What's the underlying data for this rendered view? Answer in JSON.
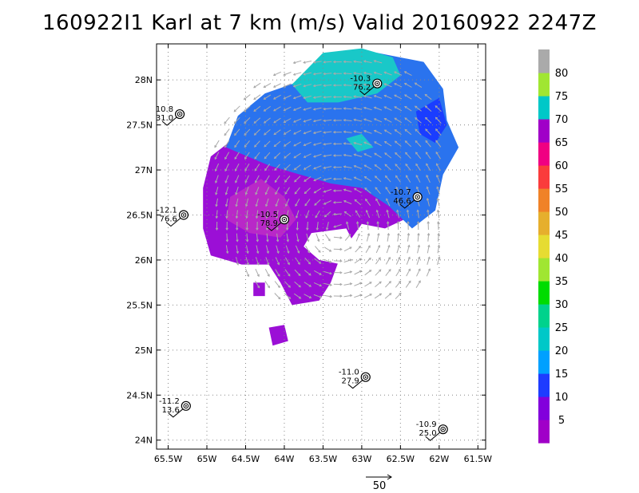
{
  "title": "160922I1 Karl at 7 km (m/s) Valid 20160922 2247Z",
  "map": {
    "lon_range": [
      -65.65,
      -61.4
    ],
    "lat_range": [
      23.9,
      28.4
    ],
    "lon_ticks": [
      {
        "value": -65.5,
        "label": "65.5W"
      },
      {
        "value": -65.0,
        "label": "65W"
      },
      {
        "value": -64.5,
        "label": "64.5W"
      },
      {
        "value": -64.0,
        "label": "64W"
      },
      {
        "value": -63.5,
        "label": "63.5W"
      },
      {
        "value": -63.0,
        "label": "63W"
      },
      {
        "value": -62.5,
        "label": "62.5W"
      },
      {
        "value": -62.0,
        "label": "62W"
      },
      {
        "value": -61.5,
        "label": "61.5W"
      }
    ],
    "lat_ticks": [
      {
        "value": 24.0,
        "label": "24N"
      },
      {
        "value": 24.5,
        "label": "24.5N"
      },
      {
        "value": 25.0,
        "label": "25N"
      },
      {
        "value": 25.5,
        "label": "25.5N"
      },
      {
        "value": 26.0,
        "label": "26N"
      },
      {
        "value": 26.5,
        "label": "26.5N"
      },
      {
        "value": 27.0,
        "label": "27N"
      },
      {
        "value": 27.5,
        "label": "27.5N"
      },
      {
        "value": 28.0,
        "label": "28N"
      }
    ],
    "grid": "dotted"
  },
  "observations": [
    {
      "lon": -62.8,
      "lat": 27.96,
      "temp": "-10.3",
      "value": "76.2"
    },
    {
      "lon": -65.35,
      "lat": 27.62,
      "temp": "10.8",
      "value": "31.0"
    },
    {
      "lon": -62.28,
      "lat": 26.7,
      "temp": "-10.7",
      "value": "46.6"
    },
    {
      "lon": -65.3,
      "lat": 26.5,
      "temp": "-12.1",
      "value": "76.6"
    },
    {
      "lon": -64.0,
      "lat": 26.45,
      "temp": "-10.5",
      "value": "78.9"
    },
    {
      "lon": -62.95,
      "lat": 24.7,
      "temp": "-11.0",
      "value": "27.9"
    },
    {
      "lon": -65.27,
      "lat": 24.38,
      "temp": "-11.2",
      "value": "13.6"
    },
    {
      "lon": -61.95,
      "lat": 24.12,
      "temp": "-10.9",
      "value": "25.0"
    }
  ],
  "reference_vector": {
    "label": "50"
  },
  "colorbar": {
    "colors": [
      "#a000c8",
      "#8200dc",
      "#1e3cff",
      "#00a0ff",
      "#00c8c8",
      "#00d28c",
      "#00dc00",
      "#a0e632",
      "#e6dc32",
      "#e6af2d",
      "#f08228",
      "#fa3c3c",
      "#f00082",
      "#a000c8",
      "#00c8c8",
      "#a0e632",
      "#aaaaaa"
    ],
    "labels": [
      "5",
      "10",
      "15",
      "20",
      "25",
      "30",
      "35",
      "40",
      "45",
      "50",
      "55",
      "60",
      "65",
      "70",
      "75",
      "80"
    ]
  },
  "field": {
    "violet": "#9b0fd6",
    "blue": "#2a73ee",
    "deep_blue": "#1a3dff",
    "cyan": "#19c8c8",
    "magenta": "#b928c8",
    "arrow_color": "#a9a9a9"
  }
}
